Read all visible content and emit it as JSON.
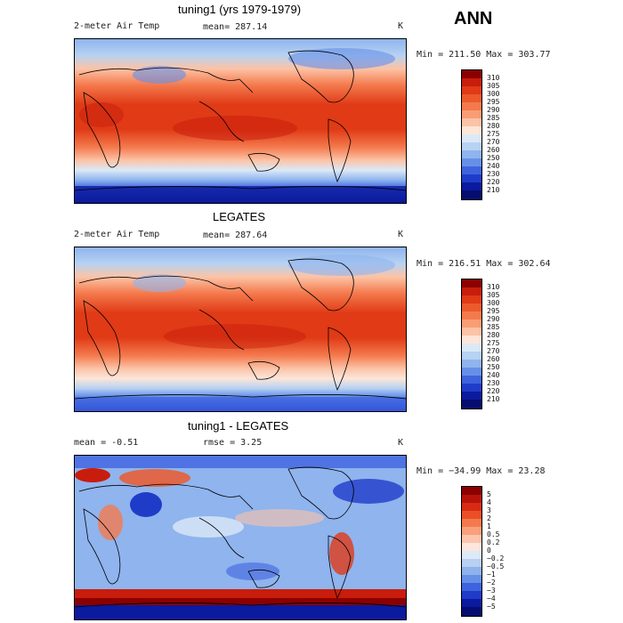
{
  "season": "ANN",
  "panels": [
    {
      "title": "tuning1 (yrs 1979-1979)",
      "left_label": "2-meter Air Temp",
      "center_label": "mean= 287.14",
      "right_label": "K",
      "minmax": "Min = 211.50 Max = 303.77",
      "colorbar": [
        "310",
        "305",
        "300",
        "295",
        "290",
        "285",
        "280",
        "275",
        "270",
        "260",
        "250",
        "240",
        "230",
        "220",
        "210"
      ],
      "colors": [
        "#8b0000",
        "#c81d0c",
        "#e03a16",
        "#ec5a2c",
        "#f47a4d",
        "#f99d75",
        "#fcc3a7",
        "#fde6d8",
        "#dbe9f7",
        "#b7d2f2",
        "#8fb4ee",
        "#6690e8",
        "#3f63df",
        "#1f3cc9",
        "#0b1a9e"
      ]
    },
    {
      "title": "LEGATES",
      "left_label": "2-meter Air Temp",
      "center_label": "mean= 287.64",
      "right_label": "K",
      "minmax": "Min = 216.51 Max = 302.64",
      "colorbar": [
        "310",
        "305",
        "300",
        "295",
        "290",
        "285",
        "280",
        "275",
        "270",
        "260",
        "250",
        "240",
        "230",
        "220",
        "210"
      ],
      "colors": [
        "#8b0000",
        "#c81d0c",
        "#e03a16",
        "#ec5a2c",
        "#f47a4d",
        "#f99d75",
        "#fcc3a7",
        "#fde6d8",
        "#dbe9f7",
        "#b7d2f2",
        "#8fb4ee",
        "#6690e8",
        "#3f63df",
        "#1f3cc9",
        "#0b1a9e"
      ]
    },
    {
      "title": "tuning1 - LEGATES",
      "left_label": "mean =   -0.51",
      "center_label": "rmse =    3.25",
      "right_label": "K",
      "minmax": "Min = −34.99 Max =  23.28",
      "colorbar": [
        "5",
        "4",
        "3",
        "2",
        "1",
        "0.5",
        "0.2",
        "0",
        "−0.2",
        "−0.5",
        "−1",
        "−2",
        "−3",
        "−4",
        "−5"
      ],
      "colors": [
        "#8b0000",
        "#b8130a",
        "#d92b14",
        "#ec4f28",
        "#f47a4d",
        "#f9a07c",
        "#fcc5ad",
        "#fde7dc",
        "#dde9f7",
        "#b8d0f1",
        "#8fb2ec",
        "#6690e8",
        "#3f63df",
        "#1f3cc9",
        "#0b1a9e",
        "#050e70"
      ]
    }
  ]
}
